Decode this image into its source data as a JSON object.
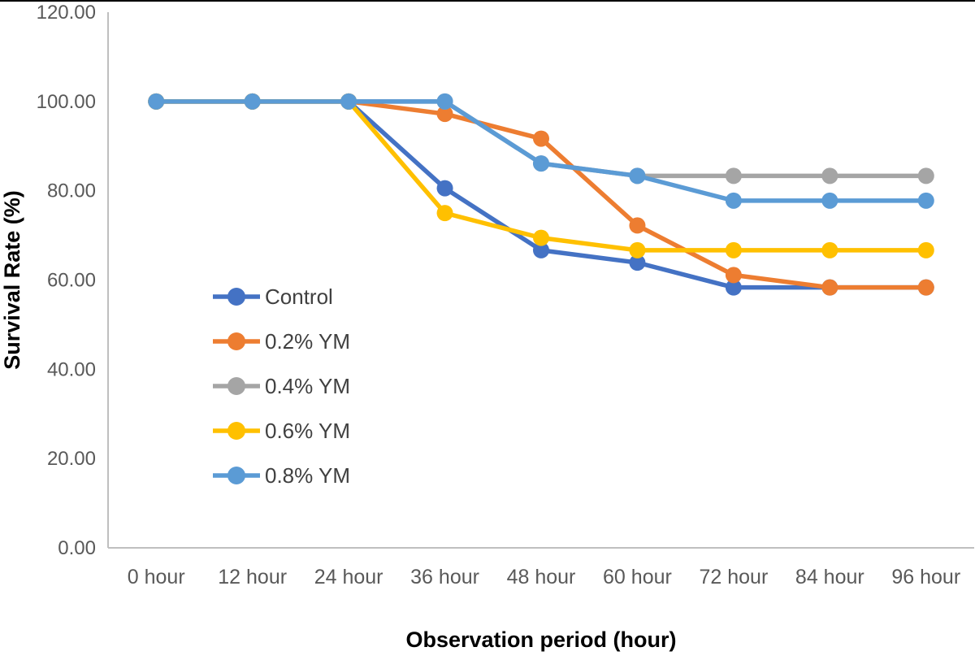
{
  "figure": {
    "background": "#FFFFFF",
    "top_border_color": "#000000"
  },
  "chart_data": {
    "type": "line",
    "title": "",
    "xlabel": "Observation period (hour)",
    "ylabel": "Survival Rate (%)",
    "categories": [
      "0 hour",
      "12 hour",
      "24 hour",
      "36 hour",
      "48 hour",
      "60 hour",
      "72 hour",
      "84 hour",
      "96 hour"
    ],
    "series": [
      {
        "name": "Control",
        "color": "#4472C4",
        "values": [
          100,
          100,
          100,
          80.56,
          66.67,
          63.89,
          58.33,
          58.33,
          58.33
        ]
      },
      {
        "name": "0.2% YM",
        "color": "#ED7D31",
        "values": [
          100,
          100,
          100,
          97.22,
          91.67,
          72.22,
          61.11,
          58.33,
          58.33
        ]
      },
      {
        "name": "0.4% YM",
        "color": "#A5A5A5",
        "values": [
          100,
          100,
          100,
          100,
          86.11,
          83.33,
          83.33,
          83.33,
          83.33
        ]
      },
      {
        "name": "0.6% YM",
        "color": "#FFC000",
        "values": [
          100,
          100,
          100,
          75.0,
          69.44,
          66.67,
          66.67,
          66.67,
          66.67
        ]
      },
      {
        "name": "0.8% YM",
        "color": "#5B9BD5",
        "values": [
          100,
          100,
          100,
          100,
          86.11,
          83.33,
          77.78,
          77.78,
          77.78
        ]
      }
    ],
    "ylim": [
      0,
      120
    ],
    "ytick_step": 20,
    "ytick_decimals": 2,
    "grid": false,
    "legend_position": "inside-left",
    "legend_order": [
      "Control",
      "0.2% YM",
      "0.4% YM",
      "0.6% YM",
      "0.8% YM"
    ],
    "axis_line_color": "#BFBFBF",
    "tick_label_color": "#595959",
    "axis_title_color": "#000000"
  }
}
